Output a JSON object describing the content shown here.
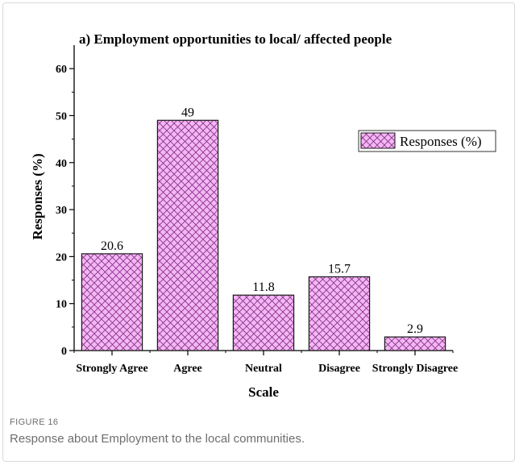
{
  "chart_data": {
    "type": "bar",
    "title": "a) Employment opportunities to local/ affected people",
    "xlabel": "Scale",
    "ylabel": "Responses (%)",
    "categories": [
      "Strongly Agree",
      "Agree",
      "Neutral",
      "Disagree",
      "Strongly Disagree"
    ],
    "series": [
      {
        "name": "Responses (%)",
        "values": [
          20.6,
          49,
          11.8,
          15.7,
          2.9
        ]
      }
    ],
    "data_labels": [
      "20.6",
      "49",
      "11.8",
      "15.7",
      "2.9"
    ],
    "ylim": [
      0,
      65
    ],
    "yticks": [
      0,
      10,
      20,
      30,
      40,
      50,
      60
    ],
    "legend": "right",
    "grid": false,
    "bar_fill": "#f2b8f2",
    "bar_hatch": "#8a2a8a",
    "bar_stroke": "#1a1a1a"
  },
  "caption": {
    "label": "FIGURE 16",
    "text": "Response about Employment to the local communities."
  }
}
